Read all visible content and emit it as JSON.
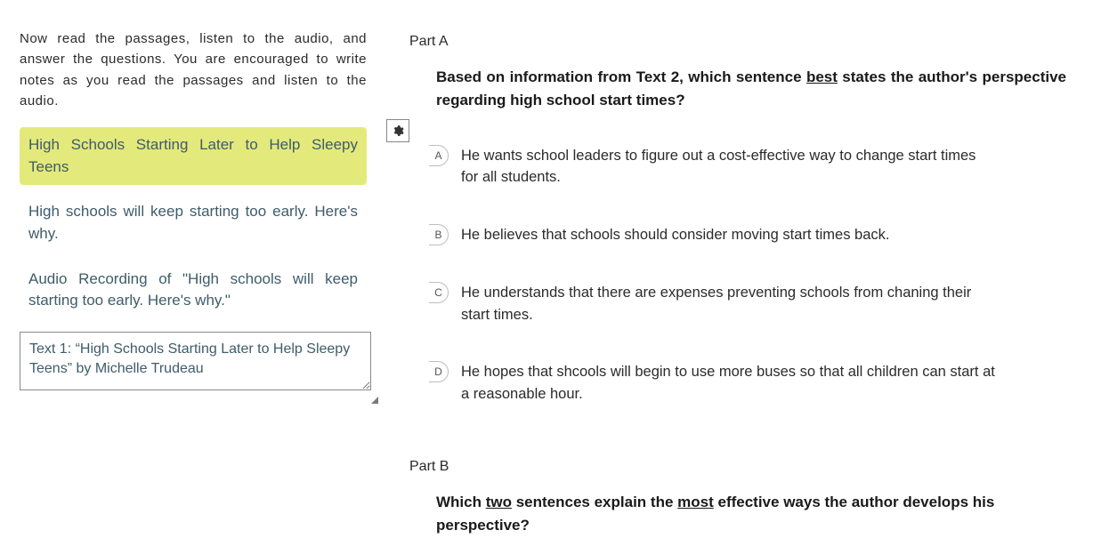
{
  "colors": {
    "highlight_bg": "#e4e97c",
    "link_text": "#3e5c6b",
    "body_text": "#2b2b2b",
    "border_gray": "#8a8a8a",
    "choice_border": "#bdbdbd"
  },
  "left": {
    "instructions": "Now read the passages, listen to the audio, and answer the questions. You are encouraged to write notes as you read the passages and listen to the audio.",
    "passages": [
      {
        "label": "High Schools Starting Later to Help Sleepy Teens",
        "highlighted": true
      },
      {
        "label": "High schools will keep starting too early. Here's why.",
        "highlighted": false
      },
      {
        "label": "Audio Recording of \"High schools will keep starting too early. Here's why.\"",
        "highlighted": false
      }
    ],
    "notes_value": "Text 1: “High Schools Starting Later to Help Sleepy Teens” by Michelle Trudeau"
  },
  "right": {
    "partA": {
      "label": "Part A",
      "stem_pre": "Based on information from Text 2, which sentence ",
      "stem_underlined": "best",
      "stem_post": " states the author's perspective regarding high school start times?",
      "choices": [
        {
          "letter": "A",
          "text": "He wants school leaders to figure out a cost-effective way to change start times for all students."
        },
        {
          "letter": "B",
          "text": "He believes that schools should consider moving start times back."
        },
        {
          "letter": "C",
          "text": "He understands that there are expenses preventing schools from chaning their start times."
        },
        {
          "letter": "D",
          "text": "He hopes that shcools will begin to use more buses so that all children can start at a reasonable hour."
        }
      ]
    },
    "partB": {
      "label": "Part B",
      "stem_1": "Which ",
      "stem_u1": "two",
      "stem_2": " sentences explain the ",
      "stem_u2": "most",
      "stem_3": " effective ways the author develops his perspective?"
    }
  }
}
